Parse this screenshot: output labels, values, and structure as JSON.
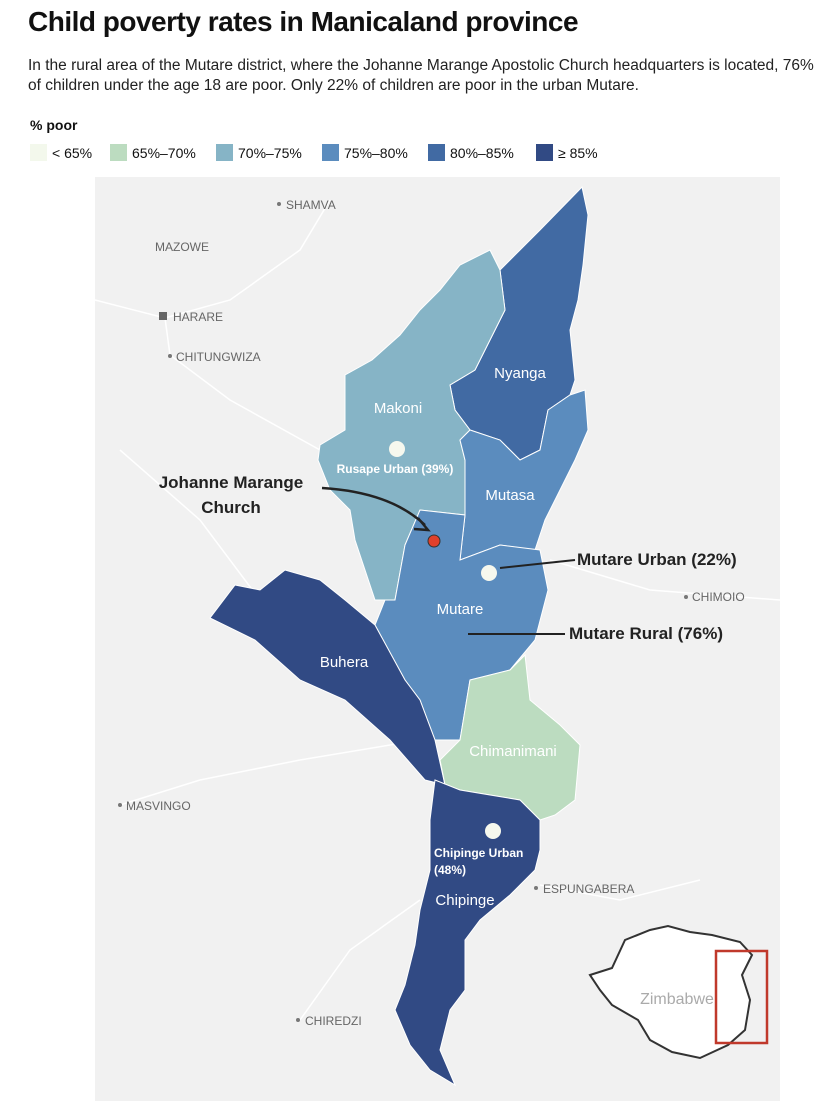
{
  "header": {
    "title": "Child poverty rates in Manicaland province",
    "subtitle": "In the rural area of the Mutare district, where the Johanne Marange Apostolic Church headquarters is located, 76% of children under the age 18 are poor. Only 22% of children are poor in the urban Mutare."
  },
  "legend": {
    "title": "% poor",
    "items": [
      {
        "label": "< 65%",
        "color": "#f3f8ec"
      },
      {
        "label": "65%–70%",
        "color": "#bcdcc0"
      },
      {
        "label": "70%–75%",
        "color": "#86b4c6"
      },
      {
        "label": "75%–80%",
        "color": "#5b8cbe"
      },
      {
        "label": "80%–85%",
        "color": "#416aa3"
      },
      {
        "label": "≥ 85%",
        "color": "#314a84"
      }
    ]
  },
  "districts": [
    {
      "name": "Nyanga",
      "color": "#416aa3"
    },
    {
      "name": "Makoni",
      "color": "#86b4c6"
    },
    {
      "name": "Mutasa",
      "color": "#5b8cbe"
    },
    {
      "name": "Mutare",
      "color": "#5b8cbe"
    },
    {
      "name": "Buhera",
      "color": "#314a84"
    },
    {
      "name": "Chimanimani",
      "color": "#bcdcc0"
    },
    {
      "name": "Chipinge",
      "color": "#314a84"
    }
  ],
  "urban_areas": [
    {
      "lines": [
        "Rusape Urban (39%)"
      ]
    },
    {
      "lines": [
        "Chipinge Urban",
        "(48%)"
      ]
    }
  ],
  "callouts": [
    {
      "lines": [
        "Johanne Marange",
        "Church"
      ]
    },
    {
      "lines": [
        "Mutare Urban (22%)"
      ]
    },
    {
      "lines": [
        "Mutare Rural (76%)"
      ]
    }
  ],
  "places": [
    "SHAMVA",
    "MAZOWE",
    "HARARE",
    "CHITUNGWIZA",
    "CHIMOIO",
    "MASVINGO",
    "ESPUNGABERA",
    "CHIREDZI"
  ],
  "inset": {
    "label": "Zimbabwe"
  }
}
